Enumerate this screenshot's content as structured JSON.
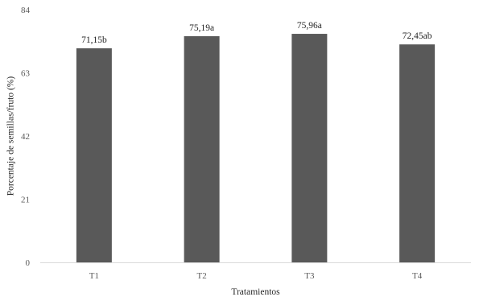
{
  "chart_data": {
    "type": "bar",
    "categories": [
      "T1",
      "T2",
      "T3",
      "T4"
    ],
    "values": [
      71.15,
      75.19,
      75.96,
      72.45
    ],
    "data_labels": [
      "71,15b",
      "75,19a",
      "75,96a",
      "72,45ab"
    ],
    "title": "",
    "xlabel": "Tratamientos",
    "ylabel": "Porcentaje de semillas/fruto (%)",
    "ylim": [
      0,
      84
    ],
    "yticks": [
      0,
      21,
      42,
      63,
      84
    ],
    "grid": false,
    "legend": "none",
    "bar_color": "#595959",
    "axis_color": "#d9d9d9"
  }
}
